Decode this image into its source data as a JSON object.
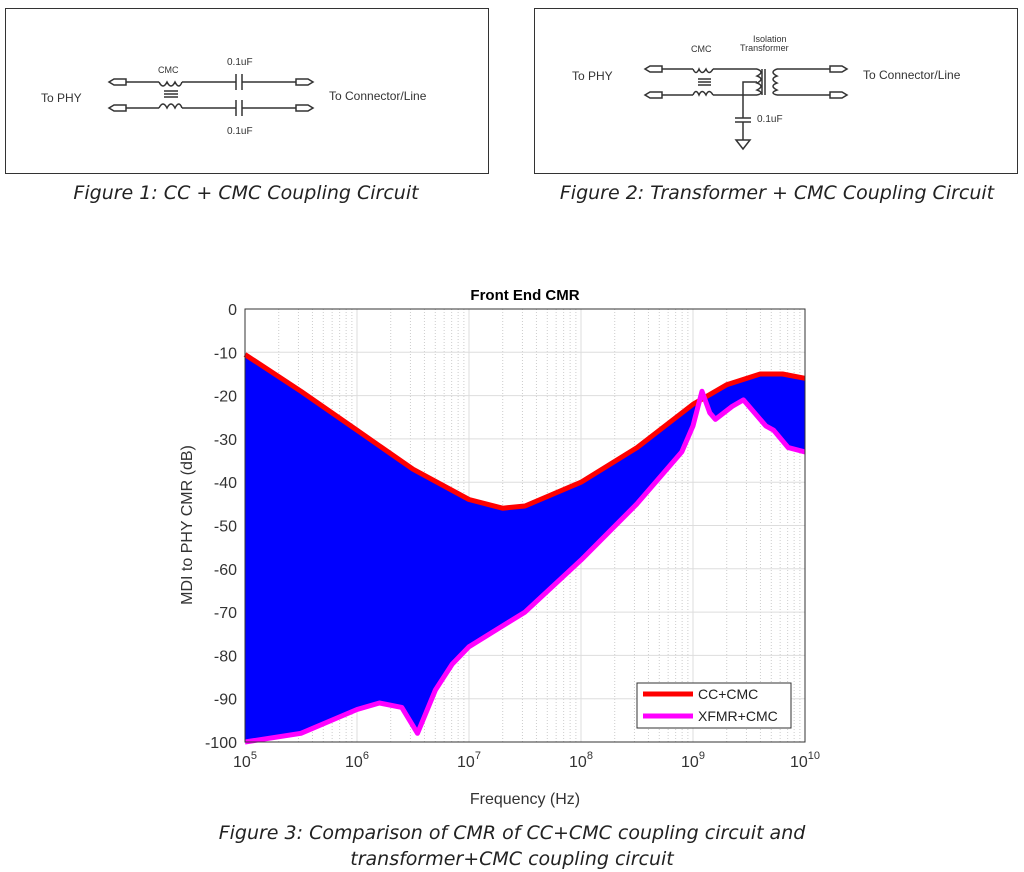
{
  "figure1": {
    "caption": "Figure 1: CC + CMC Coupling Circuit",
    "left_label": "To PHY",
    "right_label": "To Connector/Line",
    "cmc_label": "CMC",
    "cap_top": "0.1uF",
    "cap_bottom": "0.1uF"
  },
  "figure2": {
    "caption": "Figure 2: Transformer + CMC Coupling Circuit",
    "left_label": "To PHY",
    "right_label": "To Connector/Line",
    "cmc_label": "CMC",
    "xfmr_label_1": "Isolation",
    "xfmr_label_2": "Transformer",
    "cap_label": "0.1uF"
  },
  "figure3": {
    "caption_line1": "Figure 3: Comparison of CMR of CC+CMC coupling circuit and",
    "caption_line2": "transformer+CMC coupling circuit"
  },
  "chart_data": {
    "type": "line",
    "title": "Front End CMR",
    "xlabel": "Frequency (Hz)",
    "ylabel": "MDI to PHY CMR (dB)",
    "xscale": "log",
    "xlim": [
      100000,
      10000000000
    ],
    "ylim": [
      -100,
      0
    ],
    "xticks": [
      5,
      6,
      7,
      8,
      9,
      10
    ],
    "yticks": [
      "0",
      "-10",
      "-20",
      "-30",
      "-40",
      "-50",
      "-60",
      "-70",
      "-80",
      "-90",
      "-100"
    ],
    "grid": true,
    "legend_position": "bottom-right",
    "fill_between": {
      "color": "#0000ff",
      "series": [
        "CC+CMC",
        "XFMR+CMC"
      ]
    },
    "series": [
      {
        "name": "CC+CMC",
        "color": "#ff0000",
        "log10_x": [
          5,
          5.5,
          6,
          6.5,
          7,
          7.3,
          7.5,
          8,
          8.5,
          9,
          9.3,
          9.6,
          9.8,
          10
        ],
        "y": [
          -10.5,
          -19,
          -28,
          -37,
          -44,
          -46,
          -45.5,
          -40,
          -32,
          -22,
          -17.5,
          -15,
          -15,
          -16
        ]
      },
      {
        "name": "XFMR+CMC",
        "color": "#ff00ff",
        "log10_x": [
          5,
          5.5,
          6,
          6.2,
          6.4,
          6.54,
          6.7,
          6.85,
          7,
          7.5,
          8,
          8.5,
          8.9,
          9.0,
          9.08,
          9.15,
          9.2,
          9.35,
          9.45,
          9.55,
          9.65,
          9.72,
          9.85,
          10
        ],
        "y": [
          -100,
          -98,
          -92.5,
          -91,
          -92,
          -98,
          -88,
          -82,
          -78,
          -70,
          -58,
          -45,
          -33,
          -27,
          -19,
          -24,
          -25.5,
          -22.5,
          -21,
          -24,
          -27,
          -28,
          -32,
          -33
        ]
      }
    ]
  }
}
